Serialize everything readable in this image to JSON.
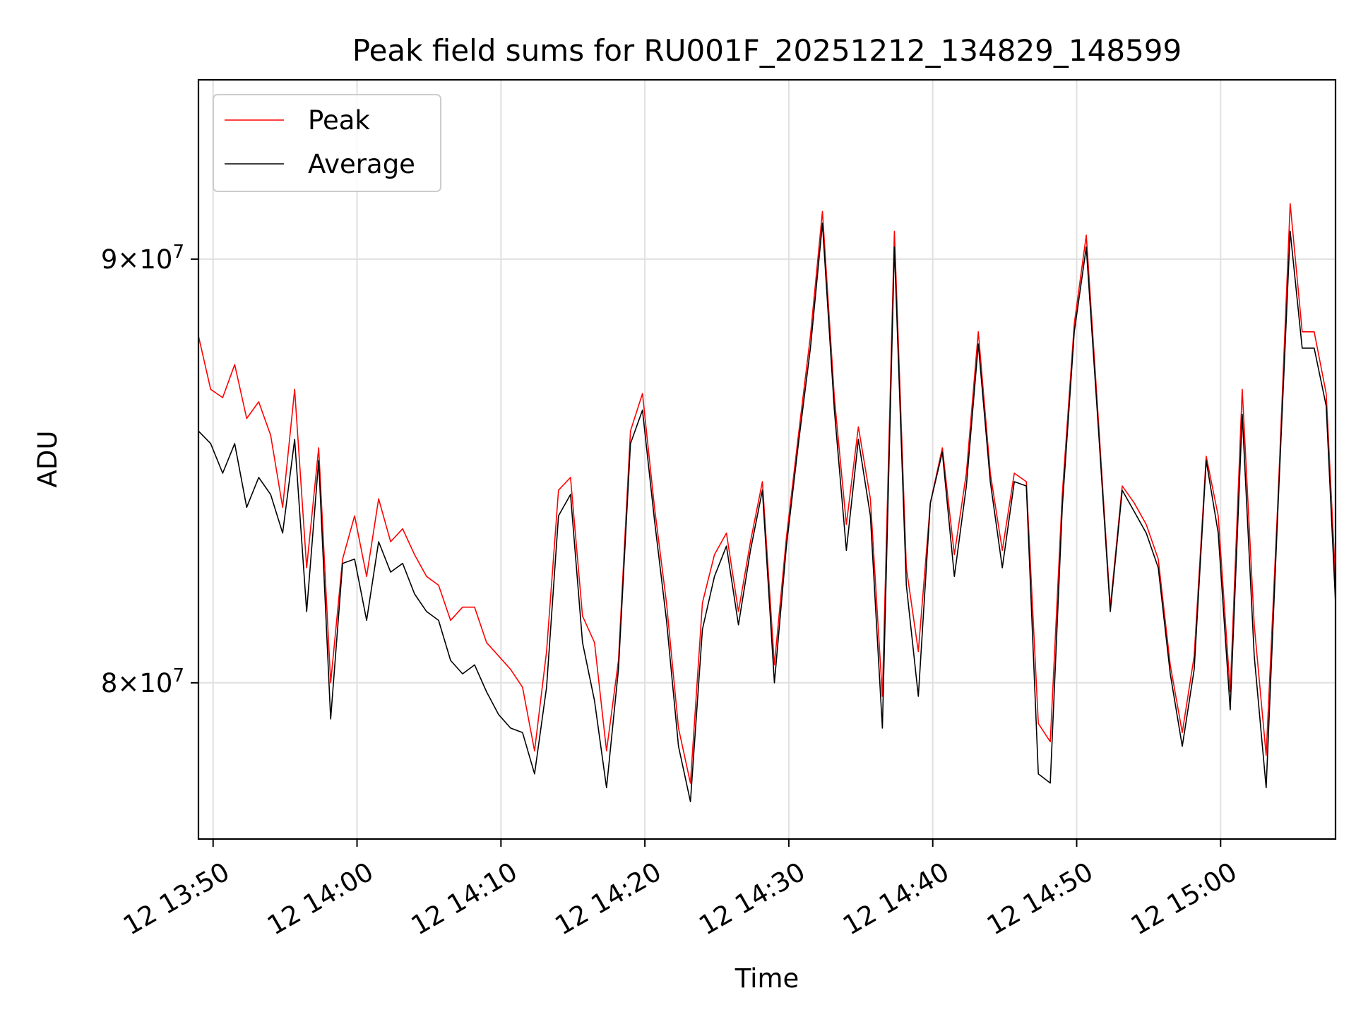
{
  "chart_data": {
    "type": "line",
    "title": "Peak field sums for RU001F_20251212_134829_148599",
    "xlabel": "Time",
    "ylabel": "ADU",
    "y_scale": "log",
    "ylim": [
      76600000,
      94600000
    ],
    "xlim": [
      "2025-12-12T13:48:59",
      "2025-12-12T15:07:59"
    ],
    "grid": true,
    "legend_position": "upper left",
    "x_ticks": [
      {
        "value": "2025-12-12T13:50:00",
        "label": "12 13:50"
      },
      {
        "value": "2025-12-12T14:00:00",
        "label": "12 14:00"
      },
      {
        "value": "2025-12-12T14:10:00",
        "label": "12 14:10"
      },
      {
        "value": "2025-12-12T14:20:00",
        "label": "12 14:20"
      },
      {
        "value": "2025-12-12T14:30:00",
        "label": "12 14:30"
      },
      {
        "value": "2025-12-12T14:40:00",
        "label": "12 14:40"
      },
      {
        "value": "2025-12-12T14:50:00",
        "label": "12 14:50"
      },
      {
        "value": "2025-12-12T15:00:00",
        "label": "12 15:00"
      }
    ],
    "y_ticks": [
      {
        "value": 80000000,
        "mantissa": "8",
        "base": "10",
        "exponent": "7"
      },
      {
        "value": 90000000,
        "mantissa": "9",
        "base": "10",
        "exponent": "7"
      }
    ],
    "x": [
      "2025-12-12T13:48:59",
      "2025-12-12T13:49:50",
      "2025-12-12T13:50:40",
      "2025-12-12T13:51:30",
      "2025-12-12T13:52:20",
      "2025-12-12T13:53:10",
      "2025-12-12T13:54:00",
      "2025-12-12T13:54:50",
      "2025-12-12T13:55:40",
      "2025-12-12T13:56:30",
      "2025-12-12T13:57:20",
      "2025-12-12T13:58:10",
      "2025-12-12T13:59:00",
      "2025-12-12T13:59:50",
      "2025-12-12T14:00:40",
      "2025-12-12T14:01:30",
      "2025-12-12T14:02:20",
      "2025-12-12T14:03:10",
      "2025-12-12T14:04:00",
      "2025-12-12T14:04:50",
      "2025-12-12T14:05:40",
      "2025-12-12T14:06:30",
      "2025-12-12T14:07:20",
      "2025-12-12T14:08:10",
      "2025-12-12T14:09:00",
      "2025-12-12T14:09:50",
      "2025-12-12T14:10:40",
      "2025-12-12T14:11:30",
      "2025-12-12T14:12:20",
      "2025-12-12T14:13:10",
      "2025-12-12T14:14:00",
      "2025-12-12T14:14:50",
      "2025-12-12T14:15:40",
      "2025-12-12T14:16:30",
      "2025-12-12T14:17:20",
      "2025-12-12T14:18:10",
      "2025-12-12T14:19:00",
      "2025-12-12T14:19:50",
      "2025-12-12T14:20:40",
      "2025-12-12T14:21:30",
      "2025-12-12T14:22:20",
      "2025-12-12T14:23:10",
      "2025-12-12T14:24:00",
      "2025-12-12T14:24:50",
      "2025-12-12T14:25:40",
      "2025-12-12T14:26:30",
      "2025-12-12T14:27:20",
      "2025-12-12T14:28:10",
      "2025-12-12T14:29:00",
      "2025-12-12T14:29:50",
      "2025-12-12T14:30:40",
      "2025-12-12T14:31:30",
      "2025-12-12T14:32:20",
      "2025-12-12T14:33:10",
      "2025-12-12T14:34:00",
      "2025-12-12T14:34:50",
      "2025-12-12T14:35:40",
      "2025-12-12T14:36:30",
      "2025-12-12T14:37:20",
      "2025-12-12T14:38:10",
      "2025-12-12T14:39:00",
      "2025-12-12T14:39:50",
      "2025-12-12T14:40:40",
      "2025-12-12T14:41:30",
      "2025-12-12T14:42:20",
      "2025-12-12T14:43:10",
      "2025-12-12T14:44:00",
      "2025-12-12T14:44:50",
      "2025-12-12T14:45:40",
      "2025-12-12T14:46:30",
      "2025-12-12T14:47:20",
      "2025-12-12T14:48:10",
      "2025-12-12T14:49:00",
      "2025-12-12T14:49:50",
      "2025-12-12T14:50:40",
      "2025-12-12T14:51:30",
      "2025-12-12T14:52:20",
      "2025-12-12T14:53:10",
      "2025-12-12T14:54:00",
      "2025-12-12T14:54:50",
      "2025-12-12T14:55:40",
      "2025-12-12T14:56:30",
      "2025-12-12T14:57:20",
      "2025-12-12T14:58:10",
      "2025-12-12T14:59:00",
      "2025-12-12T14:59:50",
      "2025-12-12T15:00:40",
      "2025-12-12T15:01:30",
      "2025-12-12T15:02:20",
      "2025-12-12T15:03:10",
      "2025-12-12T15:04:00",
      "2025-12-12T15:04:50",
      "2025-12-12T15:05:40",
      "2025-12-12T15:06:30",
      "2025-12-12T15:07:20",
      "2025-12-12T15:07:59"
    ],
    "series": [
      {
        "name": "Peak",
        "color": "#ff0000",
        "values": [
          88100000,
          86800000,
          86600000,
          87400000,
          86100000,
          86500000,
          85700000,
          84000000,
          86800000,
          82600000,
          85400000,
          80000000,
          82800000,
          83800000,
          82400000,
          84200000,
          83200000,
          83500000,
          82900000,
          82400000,
          82200000,
          81400000,
          81700000,
          81700000,
          80900000,
          80600000,
          80300000,
          79900000,
          78500000,
          80700000,
          84400000,
          84700000,
          81500000,
          80900000,
          78500000,
          80500000,
          85800000,
          86700000,
          84000000,
          81800000,
          79000000,
          77800000,
          81800000,
          82900000,
          83400000,
          81600000,
          83200000,
          84600000,
          80400000,
          83300000,
          85700000,
          88100000,
          91200000,
          86600000,
          83600000,
          85900000,
          84200000,
          79700000,
          90700000,
          82600000,
          80700000,
          84100000,
          85400000,
          82900000,
          84800000,
          88200000,
          84800000,
          83000000,
          84800000,
          84600000,
          79100000,
          78700000,
          84300000,
          88400000,
          90600000,
          86100000,
          81700000,
          84500000,
          84100000,
          83600000,
          82800000,
          80400000,
          78900000,
          80600000,
          85200000,
          83800000,
          79800000,
          86800000,
          81300000,
          78400000,
          84300000,
          91400000,
          88200000,
          88200000,
          86700000,
          82300000
        ]
      },
      {
        "name": "Average",
        "color": "#000000",
        "values": [
          85800000,
          85500000,
          84800000,
          85500000,
          84000000,
          84700000,
          84300000,
          83400000,
          85600000,
          81600000,
          85100000,
          79200000,
          82700000,
          82800000,
          81400000,
          83200000,
          82500000,
          82700000,
          82000000,
          81600000,
          81400000,
          80500000,
          80200000,
          80400000,
          79800000,
          79300000,
          79000000,
          78900000,
          78000000,
          79900000,
          83800000,
          84300000,
          80900000,
          79600000,
          77700000,
          80300000,
          85500000,
          86300000,
          83700000,
          81400000,
          78600000,
          77400000,
          81200000,
          82400000,
          83100000,
          81300000,
          83000000,
          84400000,
          80000000,
          83100000,
          85500000,
          87800000,
          90900000,
          86300000,
          83000000,
          85600000,
          83800000,
          79000000,
          90300000,
          82200000,
          79700000,
          84100000,
          85300000,
          82400000,
          84500000,
          87900000,
          84600000,
          82600000,
          84600000,
          84500000,
          78000000,
          77800000,
          84000000,
          88200000,
          90300000,
          85900000,
          81600000,
          84400000,
          83900000,
          83400000,
          82600000,
          80200000,
          78600000,
          80300000,
          85100000,
          83400000,
          79400000,
          86200000,
          80600000,
          77700000,
          84100000,
          90700000,
          87800000,
          87800000,
          86400000,
          81800000
        ]
      }
    ]
  }
}
